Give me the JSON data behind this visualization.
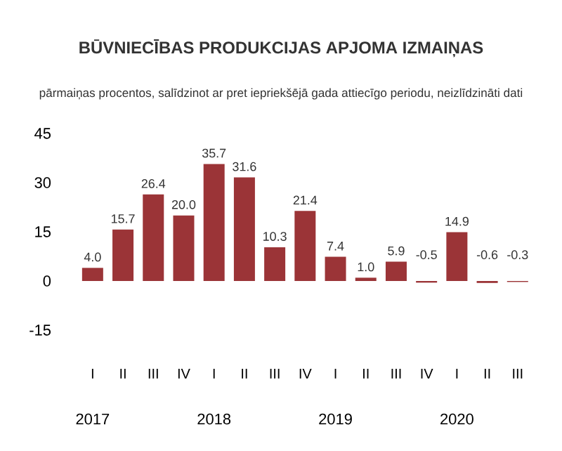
{
  "chart_data": {
    "type": "bar",
    "title": "BŪVNIECĪBAS PRODUKCIJAS APJOMA IZMAIŅAS",
    "subtitle": "pārmaiņas procentos, salīdzinot ar pret iepriekšējā gada attiecīgo periodu, neizlīdzināti dati",
    "categories": [
      "I",
      "II",
      "III",
      "IV",
      "I",
      "II",
      "III",
      "IV",
      "I",
      "II",
      "III",
      "IV",
      "I",
      "II",
      "III"
    ],
    "values": [
      4.0,
      15.7,
      26.4,
      20.0,
      35.7,
      31.6,
      10.3,
      21.4,
      7.4,
      1.0,
      5.9,
      -0.5,
      14.9,
      -0.6,
      -0.3
    ],
    "value_labels": [
      "4.0",
      "15.7",
      "26.4",
      "20.0",
      "35.7",
      "31.6",
      "10.3",
      "21.4",
      "7.4",
      "1.0",
      "5.9",
      "-0.5",
      "14.9",
      "-0.6",
      "-0.3"
    ],
    "color": "#9b3437",
    "annotations": [
      "2017",
      "2018",
      "2019",
      "2020"
    ],
    "ylim": [
      -15,
      45
    ],
    "yticks": [
      -15,
      0,
      15,
      30,
      45
    ]
  }
}
